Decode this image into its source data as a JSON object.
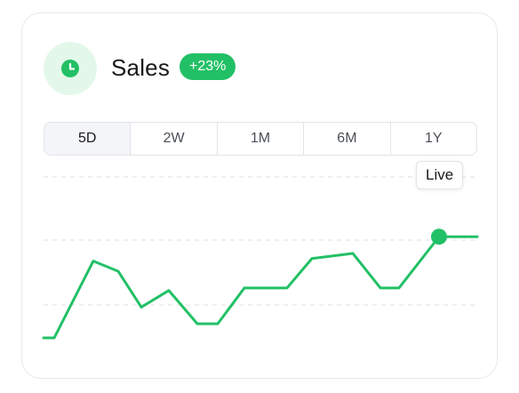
{
  "widget": {
    "title": "Sales",
    "change_badge": "+23%",
    "icon": "clock-icon",
    "tooltip": "Live"
  },
  "tabs": [
    {
      "label": "5D",
      "active": true
    },
    {
      "label": "2W",
      "active": false
    },
    {
      "label": "1M",
      "active": false
    },
    {
      "label": "6M",
      "active": false
    },
    {
      "label": "1Y",
      "active": false
    }
  ],
  "colors": {
    "accent": "#22c066",
    "icon_bg": "#e3f8ea",
    "text": "#1a1a1a",
    "border": "#e2e5e9"
  },
  "chart_data": {
    "type": "line",
    "grid": "dashed-horizontal",
    "ylim": [
      0,
      100
    ],
    "series": [
      {
        "values": [
          0,
          0,
          60,
          52,
          24,
          37,
          11,
          11,
          39,
          39,
          39,
          62,
          66,
          39,
          39,
          79,
          79,
          79
        ],
        "live_point_index": 15
      }
    ]
  }
}
